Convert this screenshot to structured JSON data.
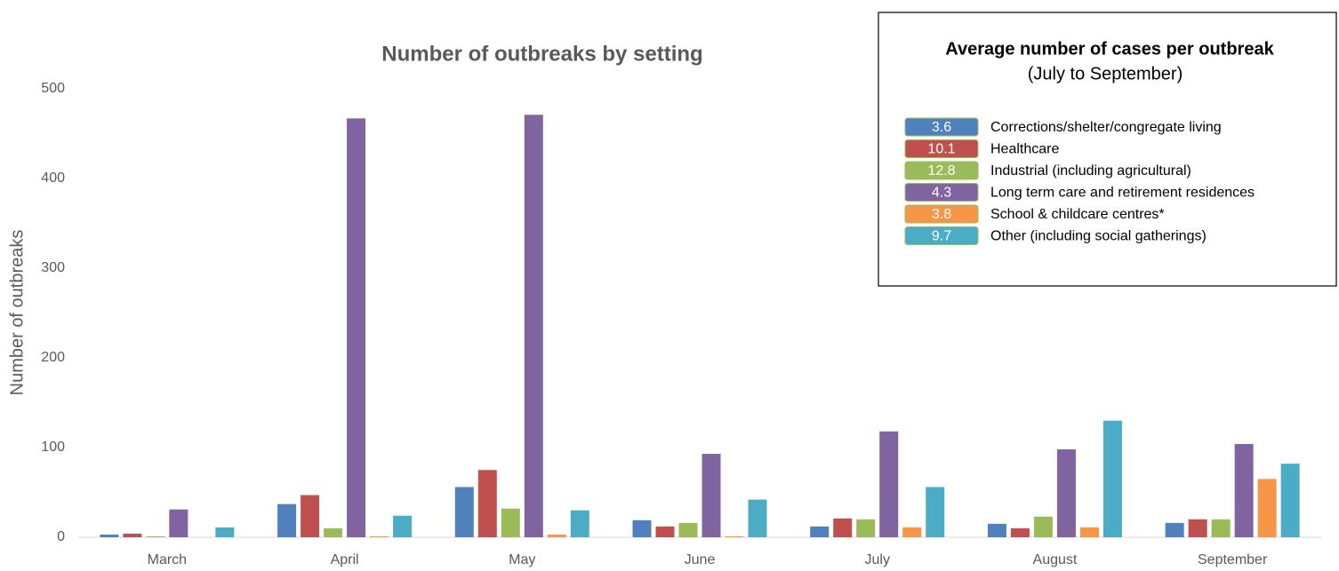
{
  "chart_data": {
    "type": "bar",
    "title": "Number of outbreaks by setting",
    "y_label": "Number of outbreaks",
    "categories": [
      "March",
      "April",
      "May",
      "June",
      "July",
      "August",
      "September"
    ],
    "ylim": [
      0,
      500
    ],
    "yticks": [
      0,
      100,
      200,
      300,
      400,
      500
    ],
    "legend_title": "Average number of cases per outbreak",
    "legend_subtitle": "(July to September)",
    "series": [
      {
        "name": "Corrections/shelter/congregate living",
        "color": "#4f81bd",
        "average": 3.6,
        "values": [
          3,
          37,
          56,
          19,
          12,
          15,
          16
        ]
      },
      {
        "name": "Healthcare",
        "color": "#c0504d",
        "average": 10.1,
        "values": [
          4,
          47,
          75,
          12,
          21,
          10,
          20
        ]
      },
      {
        "name": "Industrial (including agricultural)",
        "color": "#9bbb59",
        "average": 12.8,
        "values": [
          1,
          10,
          32,
          16,
          20,
          23,
          20
        ]
      },
      {
        "name": "Long term care and retirement residences",
        "color": "#8064a2",
        "average": 4.3,
        "values": [
          31,
          467,
          471,
          93,
          118,
          98,
          104
        ]
      },
      {
        "name": "School & childcare centres*",
        "color": "#f79646",
        "average": 3.8,
        "values": [
          0,
          1,
          3,
          1,
          11,
          11,
          65
        ]
      },
      {
        "name": "Other (including social gatherings)",
        "color": "#4bacc6",
        "average": 9.7,
        "values": [
          11,
          24,
          30,
          42,
          56,
          130,
          82
        ]
      }
    ]
  }
}
